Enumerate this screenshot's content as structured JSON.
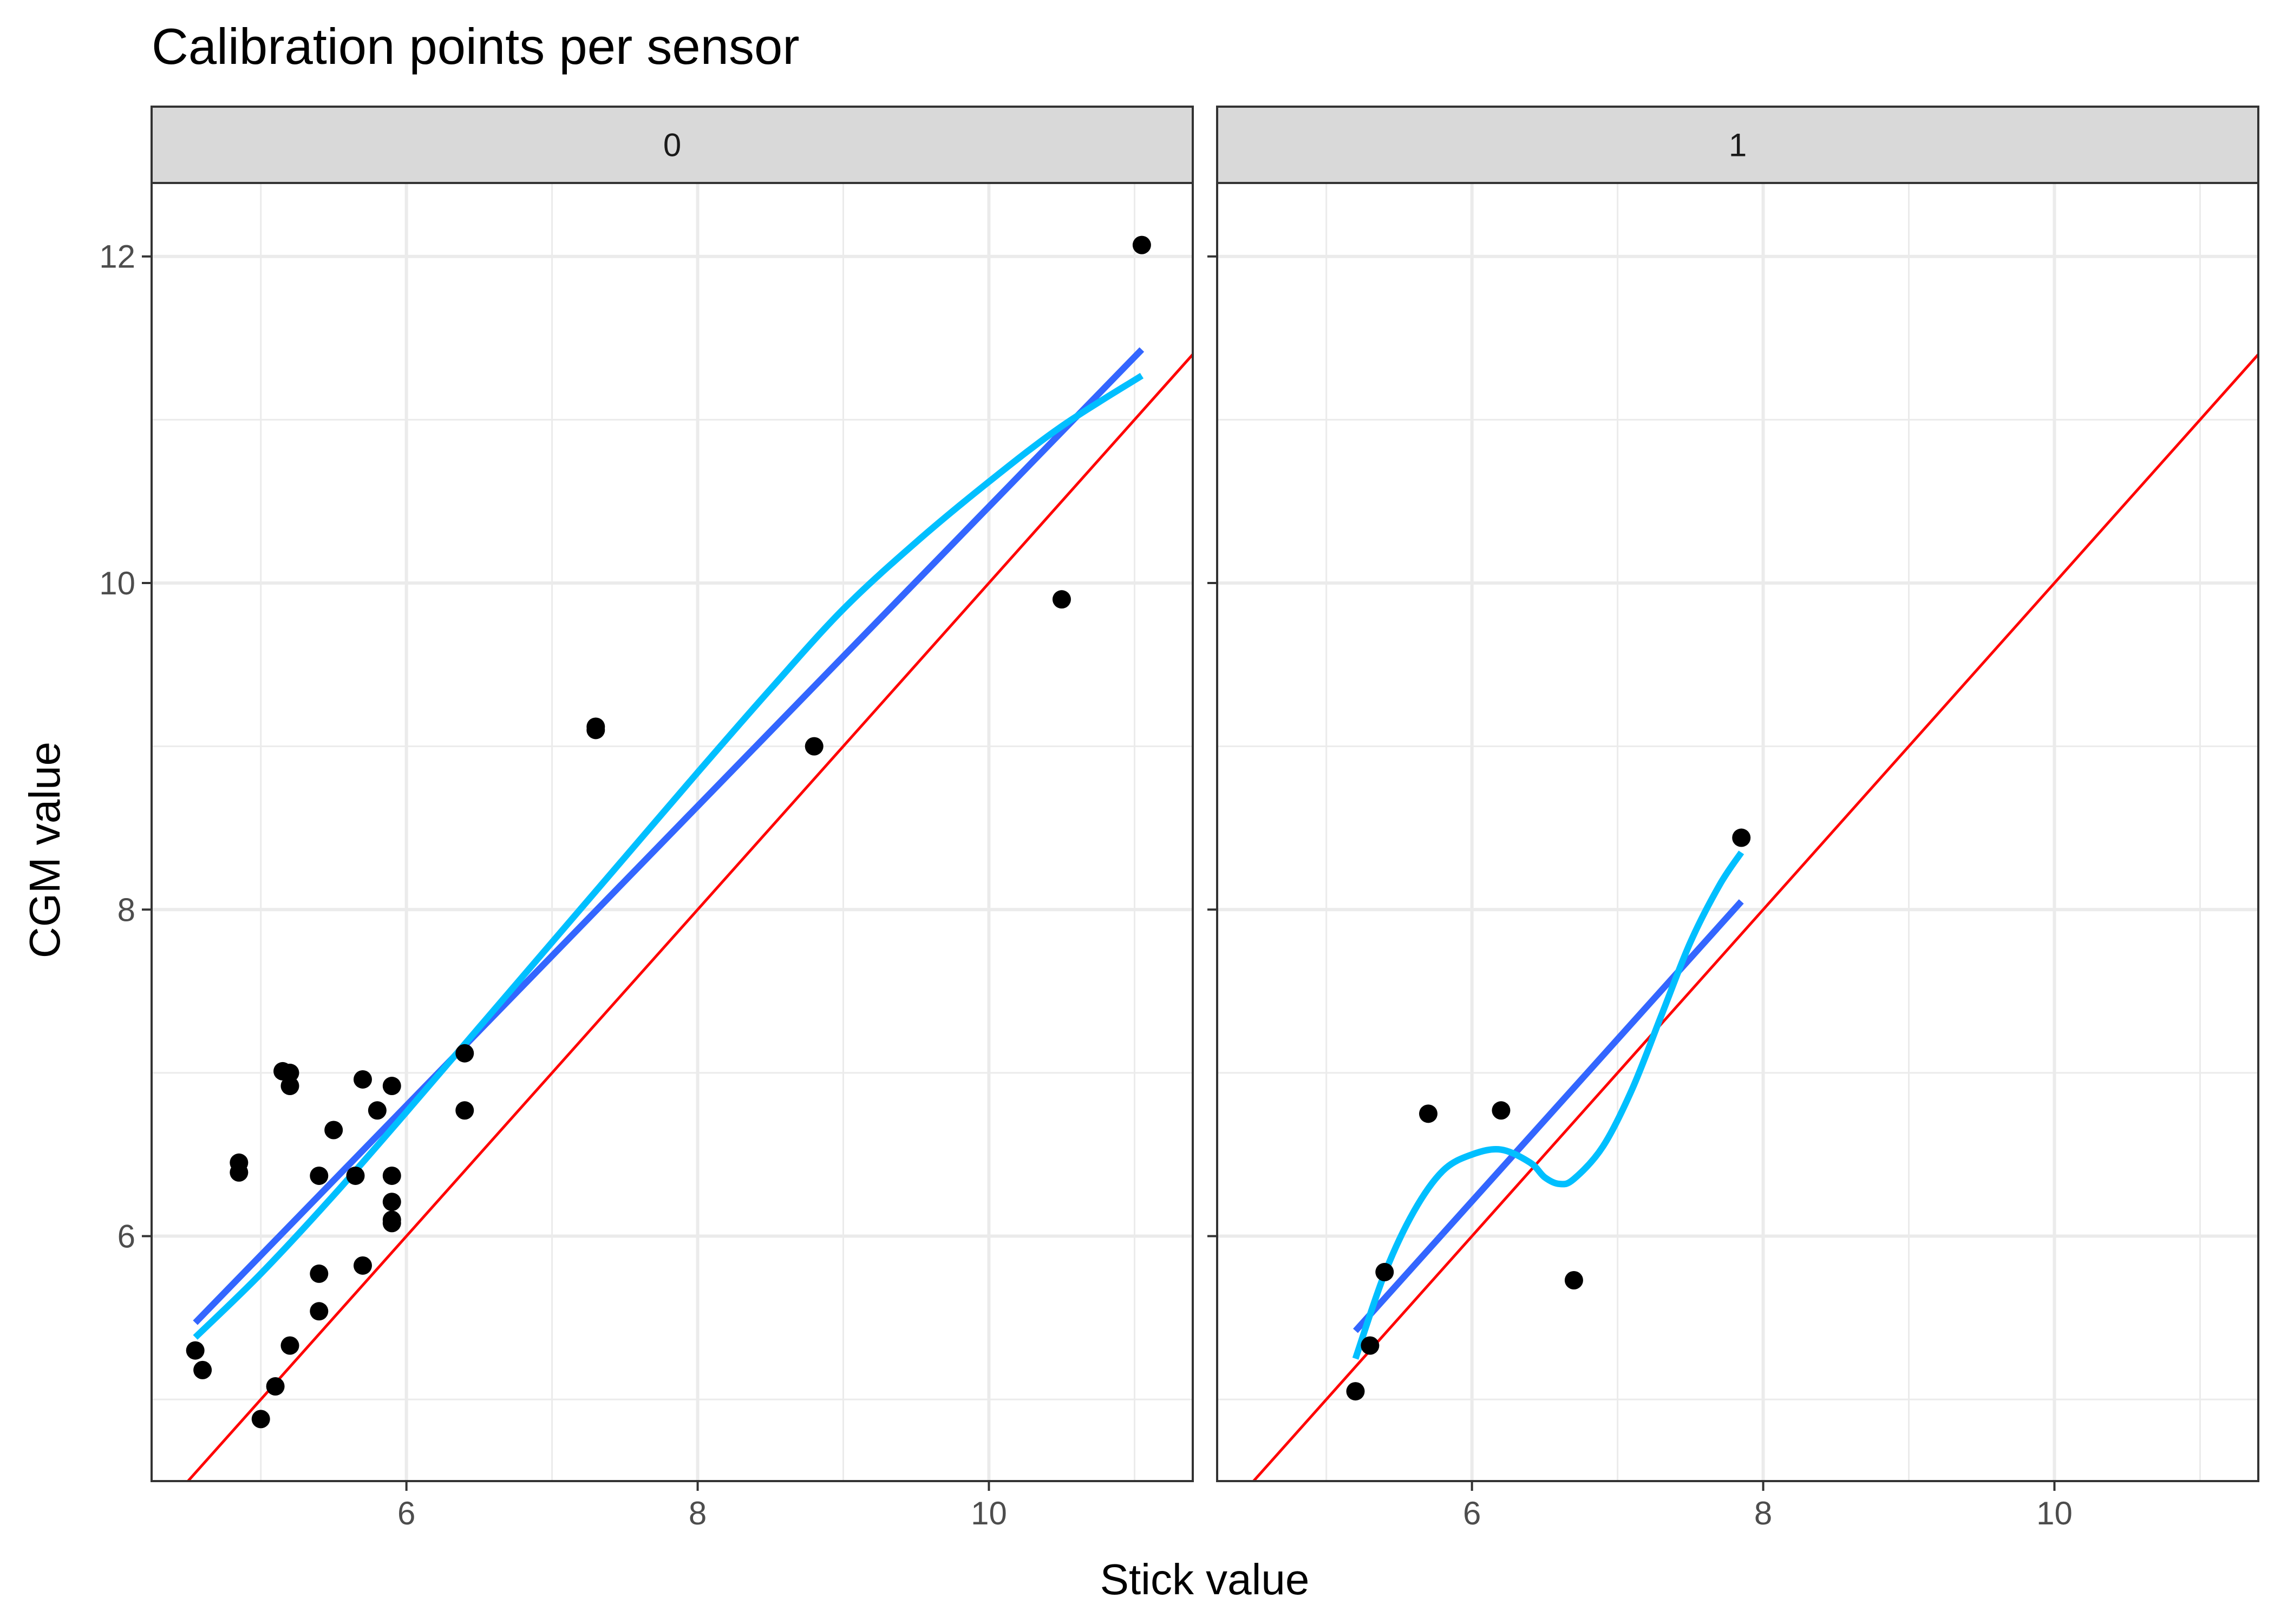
{
  "chart_data": {
    "type": "scatter",
    "title": "Calibration points per sensor",
    "xlabel": "Stick value",
    "ylabel": "CGM value",
    "xlim": [
      4.25,
      11.4
    ],
    "ylim": [
      4.5,
      12.45
    ],
    "x_ticks": [
      6,
      8,
      10
    ],
    "y_ticks": [
      6,
      8,
      10,
      12
    ],
    "x_tick_labels": [
      "6",
      "8",
      "10"
    ],
    "y_tick_labels": [
      "6",
      "8",
      "10",
      "12"
    ],
    "grid": true,
    "colors": {
      "points": "#000000",
      "identity_line": "#ff0000",
      "linear_fit": "#3366ff",
      "smooth_fit": "#00bfff",
      "strip_fill": "#d9d9d9",
      "grid": "#ebebeb"
    },
    "panels": [
      {
        "facet": "0",
        "points": [
          [
            4.55,
            5.3
          ],
          [
            4.6,
            5.18
          ],
          [
            4.85,
            6.45
          ],
          [
            4.85,
            6.39
          ],
          [
            5.0,
            4.88
          ],
          [
            5.1,
            5.08
          ],
          [
            5.15,
            7.01
          ],
          [
            5.2,
            7.0
          ],
          [
            5.2,
            6.92
          ],
          [
            5.2,
            5.33
          ],
          [
            5.4,
            6.37
          ],
          [
            5.4,
            5.77
          ],
          [
            5.4,
            5.54
          ],
          [
            5.5,
            6.65
          ],
          [
            5.65,
            6.37
          ],
          [
            5.7,
            6.96
          ],
          [
            5.7,
            5.82
          ],
          [
            5.8,
            6.77
          ],
          [
            5.9,
            6.92
          ],
          [
            5.9,
            6.37
          ],
          [
            5.9,
            6.21
          ],
          [
            5.9,
            6.1
          ],
          [
            5.9,
            6.08
          ],
          [
            6.4,
            7.12
          ],
          [
            6.4,
            6.77
          ],
          [
            7.3,
            9.12
          ],
          [
            7.3,
            9.1
          ],
          [
            8.8,
            9.0
          ],
          [
            10.5,
            9.9
          ],
          [
            11.05,
            12.07
          ]
        ],
        "linear_fit": [
          [
            4.55,
            5.47
          ],
          [
            11.05,
            11.43
          ]
        ],
        "smooth_fit": [
          [
            4.55,
            5.38
          ],
          [
            5.0,
            5.77
          ],
          [
            5.5,
            6.25
          ],
          [
            6.0,
            6.76
          ],
          [
            6.5,
            7.28
          ],
          [
            7.0,
            7.8
          ],
          [
            7.5,
            8.32
          ],
          [
            8.0,
            8.84
          ],
          [
            8.5,
            9.35
          ],
          [
            9.0,
            9.84
          ],
          [
            9.5,
            10.25
          ],
          [
            10.0,
            10.62
          ],
          [
            10.5,
            10.96
          ],
          [
            11.05,
            11.27
          ]
        ],
        "identity_line": [
          [
            4.25,
            4.25
          ],
          [
            11.4,
            11.4
          ]
        ]
      },
      {
        "facet": "1",
        "points": [
          [
            5.2,
            5.05
          ],
          [
            5.3,
            5.33
          ],
          [
            5.4,
            5.78
          ],
          [
            5.7,
            6.75
          ],
          [
            6.2,
            6.77
          ],
          [
            6.7,
            5.73
          ],
          [
            7.85,
            8.44
          ]
        ],
        "linear_fit": [
          [
            5.2,
            5.42
          ],
          [
            7.85,
            8.05
          ]
        ],
        "smooth_fit": [
          [
            5.2,
            5.25
          ],
          [
            5.4,
            5.77
          ],
          [
            5.6,
            6.15
          ],
          [
            5.8,
            6.4
          ],
          [
            6.0,
            6.5
          ],
          [
            6.2,
            6.53
          ],
          [
            6.4,
            6.45
          ],
          [
            6.5,
            6.36
          ],
          [
            6.6,
            6.32
          ],
          [
            6.7,
            6.35
          ],
          [
            6.9,
            6.55
          ],
          [
            7.1,
            6.9
          ],
          [
            7.3,
            7.35
          ],
          [
            7.5,
            7.8
          ],
          [
            7.7,
            8.15
          ],
          [
            7.85,
            8.35
          ]
        ],
        "identity_line": [
          [
            4.25,
            4.25
          ],
          [
            11.4,
            11.4
          ]
        ]
      }
    ]
  }
}
